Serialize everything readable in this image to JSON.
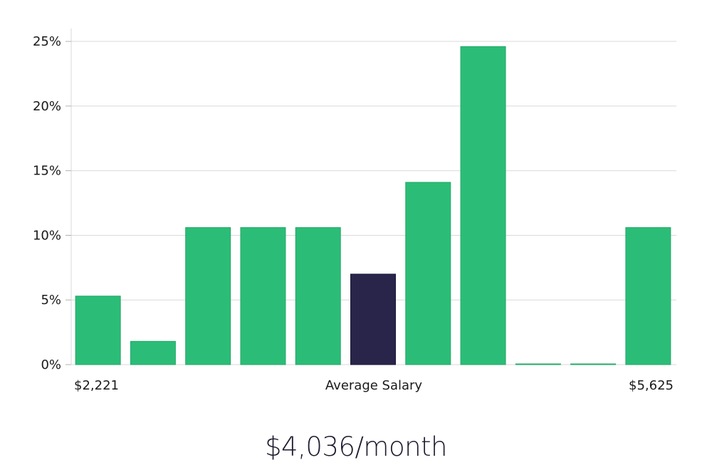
{
  "chart_data": {
    "type": "bar",
    "categories": [
      "$2,221",
      "",
      "",
      "",
      "",
      "Average Salary",
      "",
      "",
      "",
      "",
      "$5,625"
    ],
    "values": [
      5.3,
      1.8,
      10.6,
      10.6,
      10.6,
      7.0,
      14.1,
      24.6,
      0.0,
      0.0,
      10.6
    ],
    "highlight_index": 5,
    "ylim": [
      0,
      26
    ],
    "y_ticks": [
      0,
      5,
      10,
      15,
      20,
      25
    ],
    "y_tick_labels": [
      "0%",
      "5%",
      "10%",
      "15%",
      "20%",
      "25%"
    ],
    "x_labels": {
      "left": "$2,221",
      "center": "Average Salary",
      "right": "$5,625"
    },
    "grid": true,
    "colors": {
      "bar": "#2bbd77",
      "highlight": "#29244a",
      "grid": "#d9d9d9"
    }
  },
  "footer": {
    "value": "$4,036/month"
  }
}
